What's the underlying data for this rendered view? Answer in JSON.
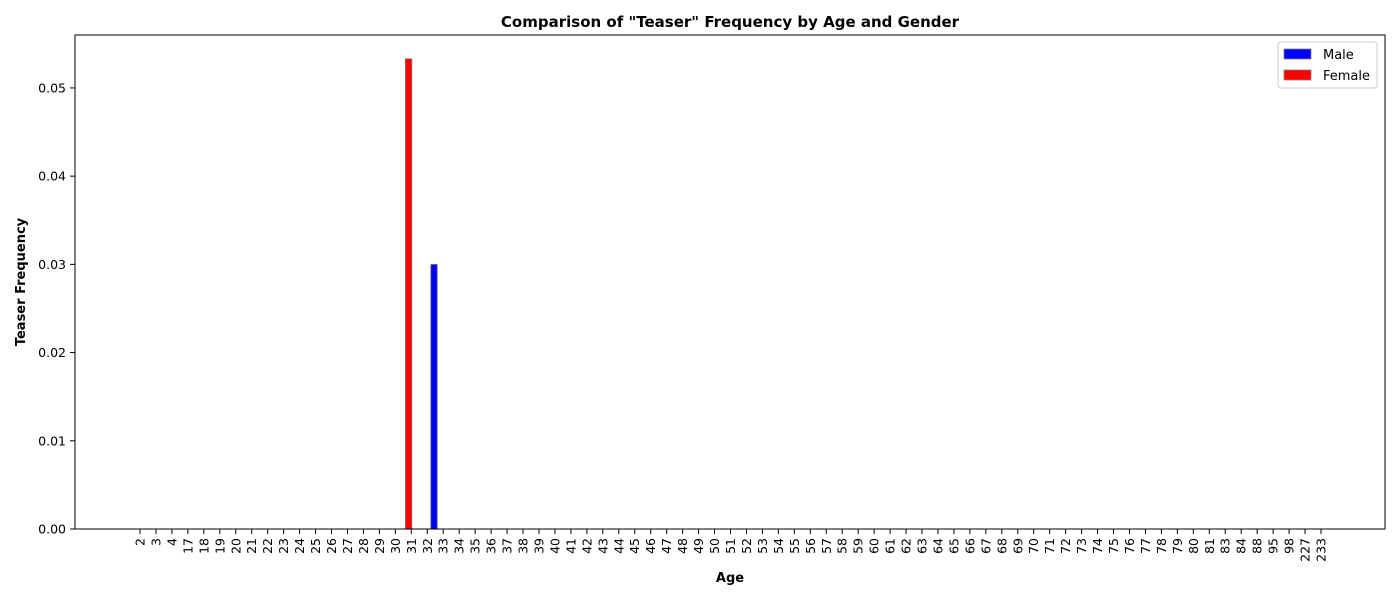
{
  "chart_data": {
    "type": "bar",
    "title": "Comparison of \"Teaser\" Frequency by Age and Gender",
    "xlabel": "Age",
    "ylabel": "Teaser Frequency",
    "ylim": [
      0,
      0.056
    ],
    "yticks": [
      "0.00",
      "0.01",
      "0.02",
      "0.03",
      "0.04",
      "0.05"
    ],
    "grid": false,
    "legend_position": "top-right",
    "categories": [
      "2",
      "3",
      "4",
      "17",
      "18",
      "19",
      "20",
      "21",
      "22",
      "23",
      "24",
      "25",
      "26",
      "27",
      "28",
      "29",
      "30",
      "31",
      "32",
      "33",
      "34",
      "35",
      "36",
      "37",
      "38",
      "39",
      "40",
      "41",
      "42",
      "43",
      "44",
      "45",
      "46",
      "47",
      "48",
      "49",
      "50",
      "51",
      "52",
      "53",
      "54",
      "55",
      "56",
      "57",
      "58",
      "59",
      "60",
      "61",
      "62",
      "63",
      "64",
      "65",
      "66",
      "67",
      "68",
      "69",
      "70",
      "71",
      "72",
      "73",
      "74",
      "75",
      "76",
      "77",
      "78",
      "79",
      "80",
      "81",
      "83",
      "84",
      "88",
      "95",
      "98",
      "227",
      "233"
    ],
    "series": [
      {
        "name": "Male",
        "color": "#0000ff",
        "values": [
          0,
          0,
          0,
          0,
          0,
          0,
          0,
          0,
          0,
          0,
          0,
          0,
          0,
          0,
          0,
          0,
          0,
          0,
          0.03,
          0,
          0,
          0,
          0,
          0,
          0,
          0,
          0,
          0,
          0,
          0,
          0,
          0,
          0,
          0,
          0,
          0,
          0,
          0,
          0,
          0,
          0,
          0,
          0,
          0,
          0,
          0,
          0,
          0,
          0,
          0,
          0,
          0,
          0,
          0,
          0,
          0,
          0,
          0,
          0,
          0,
          0,
          0,
          0,
          0,
          0,
          0,
          0,
          0,
          0,
          0,
          0,
          0,
          0,
          0,
          0
        ]
      },
      {
        "name": "Female",
        "color": "#ff0000",
        "values": [
          0,
          0,
          0,
          0,
          0,
          0,
          0,
          0,
          0,
          0,
          0,
          0,
          0,
          0,
          0,
          0,
          0,
          0.0533,
          0,
          0,
          0,
          0,
          0,
          0,
          0,
          0,
          0,
          0,
          0,
          0,
          0,
          0,
          0,
          0,
          0,
          0,
          0,
          0,
          0,
          0,
          0,
          0,
          0,
          0,
          0,
          0,
          0,
          0,
          0,
          0,
          0,
          0,
          0,
          0,
          0,
          0,
          0,
          0,
          0,
          0,
          0,
          0,
          0,
          0,
          0,
          0,
          0,
          0,
          0,
          0,
          0,
          0,
          0,
          0,
          0
        ]
      }
    ]
  }
}
